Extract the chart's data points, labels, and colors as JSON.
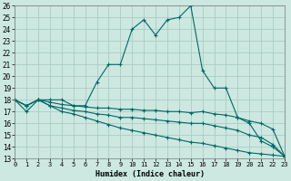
{
  "xlabel": "Humidex (Indice chaleur)",
  "bg_color": "#cce8e0",
  "grid_color": "#aaccc4",
  "line_color": "#006868",
  "xmin": 0,
  "xmax": 23,
  "ymin": 13,
  "ymax": 26,
  "series": [
    {
      "x": [
        0,
        1,
        2,
        3,
        4,
        5,
        6,
        7,
        8,
        9,
        10,
        11,
        12,
        13,
        14,
        15,
        16,
        17,
        18,
        19,
        20,
        21,
        22,
        23
      ],
      "y": [
        18,
        17,
        18,
        18,
        18,
        17.5,
        17.5,
        19.5,
        21.0,
        21.0,
        24.0,
        24.8,
        23.5,
        24.8,
        25.0,
        26.0,
        20.5,
        19.0,
        19.0,
        16.5,
        16.0,
        14.5,
        14.0,
        13.2
      ]
    },
    {
      "x": [
        0,
        1,
        2,
        3,
        4,
        5,
        6,
        7,
        8,
        9,
        10,
        11,
        12,
        13,
        14,
        15,
        16,
        17,
        18,
        19,
        20,
        21,
        22,
        23
      ],
      "y": [
        18,
        17.5,
        18,
        17.8,
        17.6,
        17.5,
        17.4,
        17.3,
        17.3,
        17.2,
        17.2,
        17.1,
        17.1,
        17.0,
        17.0,
        16.9,
        17.0,
        16.8,
        16.7,
        16.5,
        16.2,
        16.0,
        15.5,
        13.2
      ]
    },
    {
      "x": [
        0,
        1,
        2,
        3,
        4,
        5,
        6,
        7,
        8,
        9,
        10,
        11,
        12,
        13,
        14,
        15,
        16,
        17,
        18,
        19,
        20,
        21,
        22,
        23
      ],
      "y": [
        18,
        17.5,
        18,
        17.5,
        17.3,
        17.1,
        17.0,
        16.8,
        16.7,
        16.5,
        16.5,
        16.4,
        16.3,
        16.2,
        16.1,
        16.0,
        16.0,
        15.8,
        15.6,
        15.4,
        15.0,
        14.8,
        14.2,
        13.2
      ]
    },
    {
      "x": [
        0,
        1,
        2,
        3,
        4,
        5,
        6,
        7,
        8,
        9,
        10,
        11,
        12,
        13,
        14,
        15,
        16,
        17,
        18,
        19,
        20,
        21,
        22,
        23
      ],
      "y": [
        18,
        17.5,
        18,
        17.5,
        17.0,
        16.8,
        16.5,
        16.2,
        15.9,
        15.6,
        15.4,
        15.2,
        15.0,
        14.8,
        14.6,
        14.4,
        14.3,
        14.1,
        13.9,
        13.7,
        13.5,
        13.4,
        13.3,
        13.2
      ]
    }
  ]
}
